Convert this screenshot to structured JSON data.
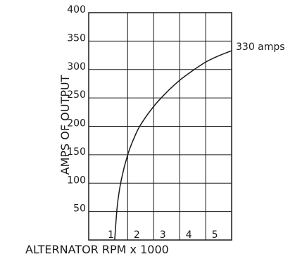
{
  "chart_data": {
    "type": "line",
    "title": "",
    "xlabel": "ALTERNATOR RPM x 1000",
    "ylabel": "AMPS OF OUTPUT",
    "xlim": [
      0,
      5.5
    ],
    "ylim": [
      0,
      400
    ],
    "x_ticks": [
      "1",
      "2",
      "3",
      "4",
      "5"
    ],
    "y_ticks": [
      "50",
      "100",
      "150",
      "200",
      "250",
      "300",
      "350",
      "400"
    ],
    "grid": true,
    "series": [
      {
        "x": [
          1.0,
          1.1,
          1.25,
          1.5,
          1.75,
          2.0,
          2.5,
          3.0,
          3.5,
          4.0,
          4.5,
          5.0,
          5.5
        ],
        "y": [
          0,
          60,
          105,
          150,
          180,
          203,
          235,
          260,
          281,
          298,
          313,
          324,
          333
        ]
      }
    ],
    "annotations": [
      {
        "text": "330 amps",
        "x": 5.5,
        "y": 333
      }
    ]
  }
}
